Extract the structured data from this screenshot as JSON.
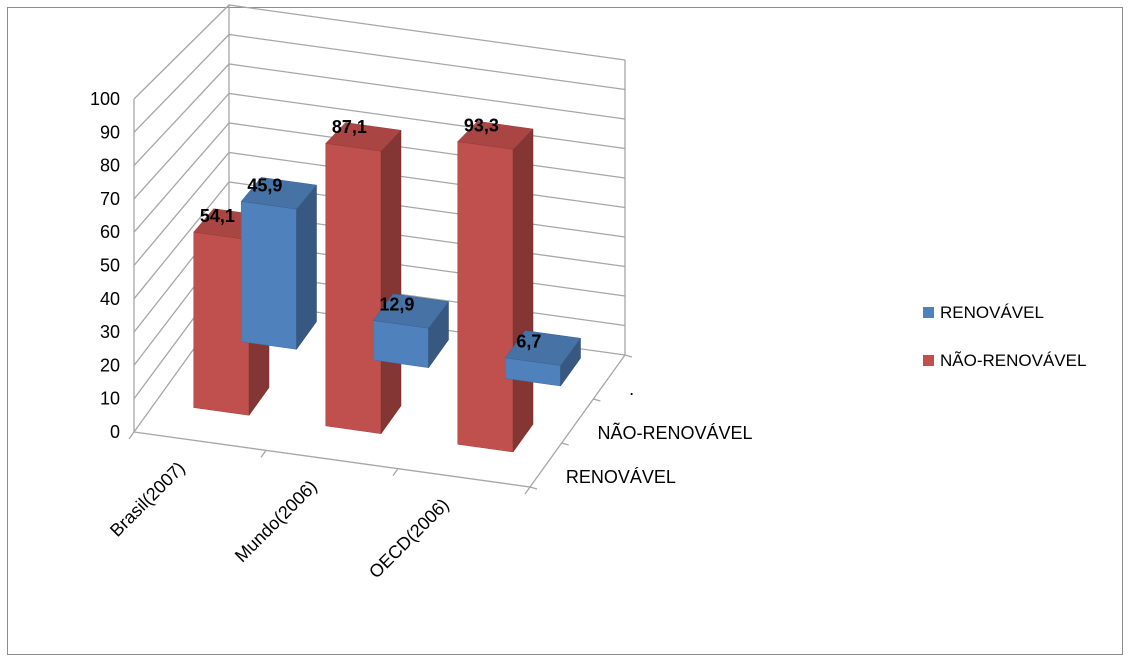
{
  "chart_data": {
    "type": "bar",
    "categories": [
      "Brasil(2007)",
      "Mundo(2006)",
      "OECD(2006)"
    ],
    "series": [
      {
        "name": "RENOVÁVEL",
        "values": [
          45.9,
          12.9,
          6.7
        ],
        "labels": [
          "45,9",
          "12,9",
          "6,7"
        ],
        "color": "#4f81bd"
      },
      {
        "name": "NÃO-RENOVÁVEL",
        "values": [
          54.1,
          87.1,
          93.3
        ],
        "labels": [
          "54,1",
          "87,1",
          "93,3"
        ],
        "color": "#c0504d"
      }
    ],
    "depth_labels": [
      ".",
      "NÃO-RENOVÁVEL",
      "RENOVÁVEL"
    ],
    "yticks": [
      "0",
      "10",
      "20",
      "30",
      "40",
      "50",
      "60",
      "70",
      "80",
      "90",
      "100"
    ],
    "ylim": [
      0,
      100
    ],
    "grid": true,
    "legend": "right"
  }
}
